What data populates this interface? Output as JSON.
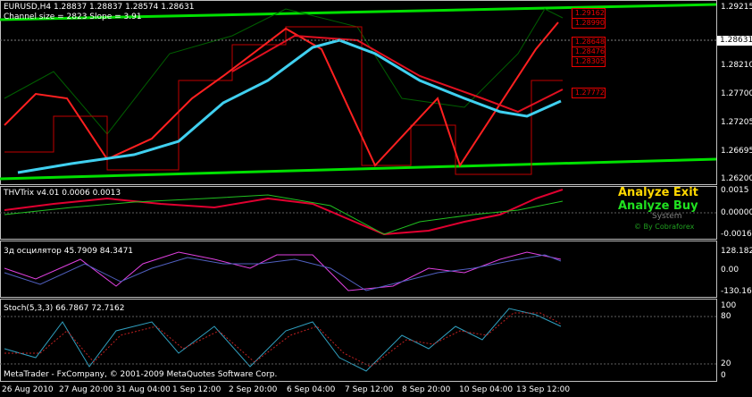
{
  "main": {
    "symbol_info": "EURUSD,H4  1.28837 1.28837 1.28574 1.28631",
    "channel_info": "Channel size = 2823 Slope = 3.91",
    "axis_labels": [
      "1.29215",
      "1.28210",
      "1.27700",
      "1.27205",
      "1.26695",
      "1.26200"
    ],
    "current_price": "1.28631",
    "price_boxes": [
      "1.29162",
      "1.28990",
      "1.28648",
      "1.28476",
      "1.28305",
      "1.27772"
    ]
  },
  "trix": {
    "title": "THVTrix v4.01 0.0006 0.0013",
    "axis_labels": [
      "0.0015",
      "0.00000",
      "-0.0016"
    ],
    "overlay": [
      "Analyze Exit",
      "Analyze Buy",
      "System",
      "© By Cobraforex"
    ]
  },
  "osc": {
    "title": "3д осцилятор 45.7909 84.3471",
    "axis_labels": [
      "128.182",
      "0.00",
      "-130.162"
    ]
  },
  "stoch": {
    "title": "Stoch(5,3,3) 66.7867 72.7162",
    "axis_labels": [
      "100",
      "80",
      "20",
      "0"
    ]
  },
  "copyright": "MetaTrader - FxCompany, © 2001-2009 MetaQuotes Software Corp.",
  "dates": [
    "26 Aug 2010",
    "27 Aug 20:00",
    "31 Aug 04:00",
    "1 Sep 12:00",
    "2 Sep 20:00",
    "6 Sep 04:00",
    "7 Sep 12:00",
    "8 Sep 20:00",
    "10 Sep 04:00",
    "13 Sep 12:00"
  ]
}
